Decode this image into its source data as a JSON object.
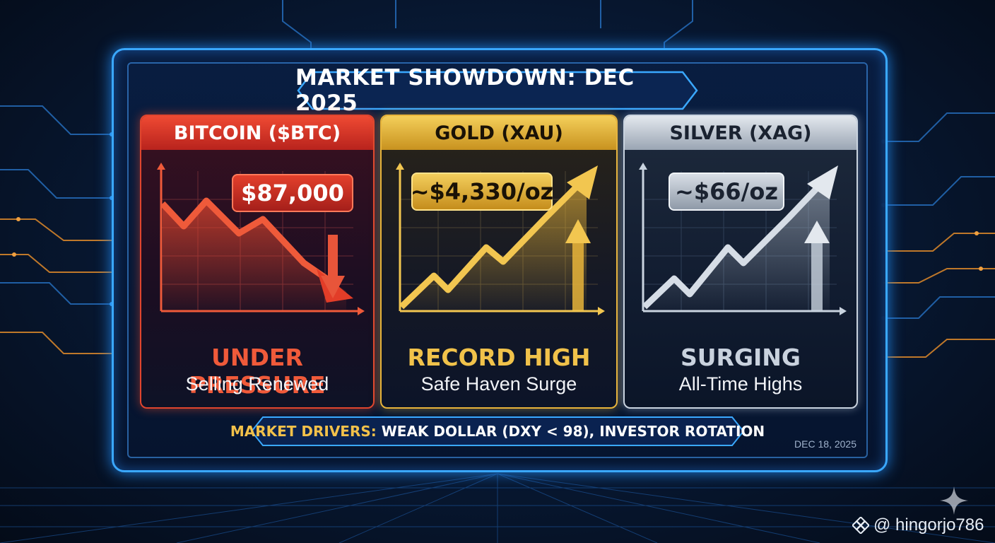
{
  "title": "MARKET SHOWDOWN: DEC 2025",
  "panels": [
    {
      "name": "BITCOIN ($BTC)",
      "price": "$87,000",
      "status": "UNDER PRESSURE",
      "subtitle": "Selling Renewed",
      "trend": "down",
      "accent": "#e0452e"
    },
    {
      "name": "GOLD (XAU)",
      "price": "~$4,330/oz",
      "status": "RECORD HIGH",
      "subtitle": "Safe Haven Surge",
      "trend": "up",
      "accent": "#e8b43a"
    },
    {
      "name": "SILVER (XAG)",
      "price": "~$66/oz",
      "status": "SURGING",
      "subtitle": "All-Time Highs",
      "trend": "up",
      "accent": "#c9d3df"
    }
  ],
  "drivers": {
    "label": "MARKET DRIVERS:",
    "text": "WEAK DOLLAR (DXY < 98), INVESTOR ROTATION"
  },
  "date": "DEC 18, 2025",
  "watermark": {
    "icon": "binance-diamond-icon",
    "handle": "@ hingorjo786"
  }
}
